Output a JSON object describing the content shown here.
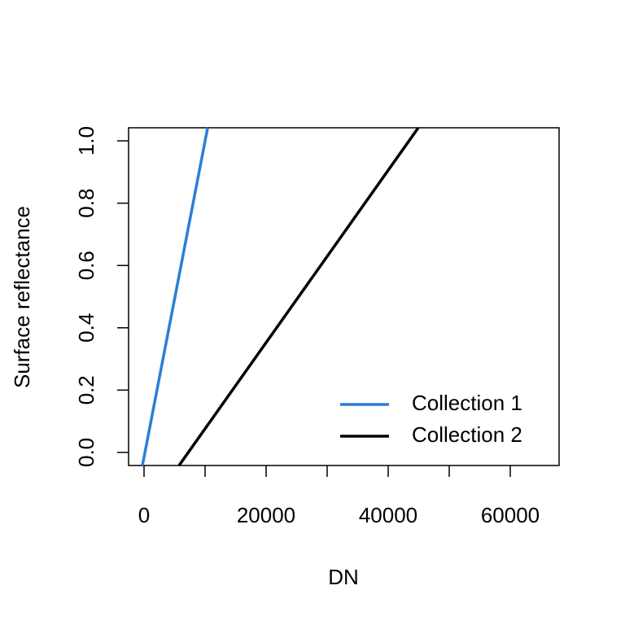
{
  "chart_data": {
    "type": "line",
    "x_label": "DN",
    "y_label": "Surface reflectance",
    "series": [
      {
        "name": "Collection 1",
        "color": "#2a7fd4",
        "x": [
          -267,
          10420
        ],
        "values": [
          -0.042,
          1.042
        ]
      },
      {
        "name": "Collection 2",
        "color": "#000000",
        "x": [
          5733,
          44933
        ],
        "values": [
          -0.042,
          1.042
        ]
      }
    ],
    "xlim": [
      -2533,
      68000
    ],
    "xticks": [
      0,
      20000,
      40000,
      60000
    ],
    "xminorticks": [
      10000,
      30000,
      50000
    ],
    "ylim": [
      -0.042,
      1.042
    ],
    "yticks": [
      {
        "value": 0,
        "label": "0.0"
      },
      0.2,
      0.4,
      0.6,
      0.8,
      {
        "value": 1,
        "label": "1.0"
      }
    ],
    "grid": false,
    "legend": "bottom-right"
  }
}
